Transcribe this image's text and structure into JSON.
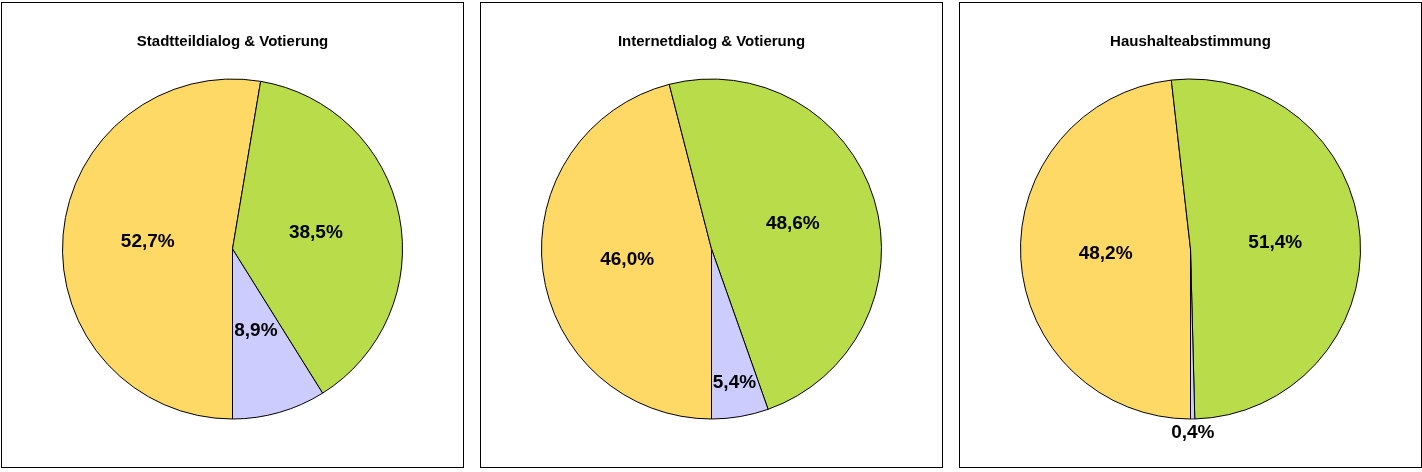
{
  "chart_data": [
    {
      "type": "pie",
      "title": "Stadtteildialog & Votierung",
      "categories": [
        null,
        null,
        null
      ],
      "values": [
        52.7,
        38.5,
        8.9
      ],
      "colors": [
        "#ffd966",
        "#b8dc4a",
        "#ccccff"
      ],
      "value_labels": [
        "52,7%",
        "38,5%",
        "8,9%"
      ],
      "legend": false
    },
    {
      "type": "pie",
      "title": "Internetdialog & Votierung",
      "categories": [
        null,
        null,
        null
      ],
      "values": [
        46.0,
        48.6,
        5.4
      ],
      "colors": [
        "#ffd966",
        "#b8dc4a",
        "#ccccff"
      ],
      "value_labels": [
        "46,0%",
        "48,6%",
        "5,4%"
      ],
      "legend": false
    },
    {
      "type": "pie",
      "title": "Haushalteabstimmung",
      "categories": [
        null,
        null,
        null
      ],
      "values": [
        48.2,
        51.4,
        0.4
      ],
      "colors": [
        "#ffd966",
        "#b8dc4a",
        "#ccccff"
      ],
      "value_labels": [
        "48,2%",
        "51,4%",
        "0,4%"
      ],
      "legend": false
    }
  ]
}
